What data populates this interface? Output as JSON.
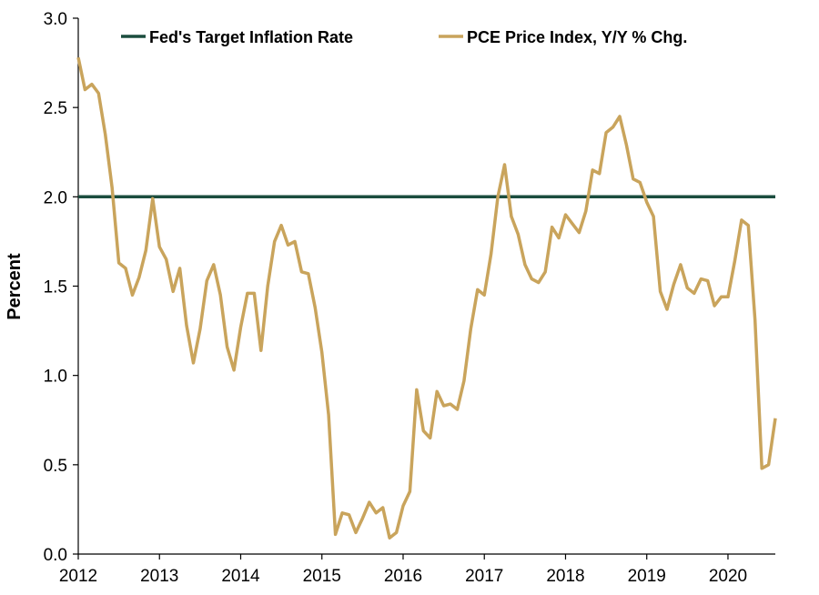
{
  "chart_data": {
    "type": "line",
    "title": "",
    "xlabel": "",
    "ylabel": "Percent",
    "ylim": [
      0,
      3.0
    ],
    "xlim": [
      2012.0,
      2020.583
    ],
    "y_ticks": [
      "0.0",
      "0.5",
      "1.0",
      "1.5",
      "2.0",
      "2.5",
      "3.0"
    ],
    "x_ticks": [
      "2012",
      "2013",
      "2014",
      "2015",
      "2016",
      "2017",
      "2018",
      "2019",
      "2020"
    ],
    "grid": false,
    "legend_position": "top",
    "series": [
      {
        "name": "Fed's Target Inflation Rate",
        "color": "#1b4d3e",
        "x": [
          2012.0,
          2020.583
        ],
        "values": [
          2.0,
          2.0
        ]
      },
      {
        "name": "PCE Price Index, Y/Y % Chg.",
        "color": "#c9a45c",
        "x": [
          2012.0,
          2012.083,
          2012.167,
          2012.25,
          2012.333,
          2012.417,
          2012.5,
          2012.583,
          2012.667,
          2012.75,
          2012.833,
          2012.917,
          2013.0,
          2013.083,
          2013.167,
          2013.25,
          2013.333,
          2013.417,
          2013.5,
          2013.583,
          2013.667,
          2013.75,
          2013.833,
          2013.917,
          2014.0,
          2014.083,
          2014.167,
          2014.25,
          2014.333,
          2014.417,
          2014.5,
          2014.583,
          2014.667,
          2014.75,
          2014.833,
          2014.917,
          2015.0,
          2015.083,
          2015.167,
          2015.25,
          2015.333,
          2015.417,
          2015.5,
          2015.583,
          2015.667,
          2015.75,
          2015.833,
          2015.917,
          2016.0,
          2016.083,
          2016.167,
          2016.25,
          2016.333,
          2016.417,
          2016.5,
          2016.583,
          2016.667,
          2016.75,
          2016.833,
          2016.917,
          2017.0,
          2017.083,
          2017.167,
          2017.25,
          2017.333,
          2017.417,
          2017.5,
          2017.583,
          2017.667,
          2017.75,
          2017.833,
          2017.917,
          2018.0,
          2018.083,
          2018.167,
          2018.25,
          2018.333,
          2018.417,
          2018.5,
          2018.583,
          2018.667,
          2018.75,
          2018.833,
          2018.917,
          2019.0,
          2019.083,
          2019.167,
          2019.25,
          2019.333,
          2019.417,
          2019.5,
          2019.583,
          2019.667,
          2019.75,
          2019.833,
          2019.917,
          2020.0,
          2020.083,
          2020.167,
          2020.25,
          2020.333,
          2020.417,
          2020.5,
          2020.583
        ],
        "values": [
          2.78,
          2.6,
          2.63,
          2.58,
          2.35,
          2.05,
          1.63,
          1.6,
          1.45,
          1.55,
          1.7,
          1.99,
          1.72,
          1.65,
          1.47,
          1.6,
          1.28,
          1.07,
          1.26,
          1.53,
          1.62,
          1.45,
          1.16,
          1.03,
          1.27,
          1.46,
          1.46,
          1.14,
          1.5,
          1.75,
          1.84,
          1.73,
          1.75,
          1.58,
          1.57,
          1.38,
          1.13,
          0.78,
          0.11,
          0.23,
          0.22,
          0.12,
          0.2,
          0.29,
          0.23,
          0.26,
          0.09,
          0.12,
          0.27,
          0.35,
          0.92,
          0.69,
          0.65,
          0.91,
          0.83,
          0.84,
          0.81,
          0.97,
          1.26,
          1.48,
          1.45,
          1.68,
          2.0,
          2.18,
          1.89,
          1.79,
          1.62,
          1.54,
          1.52,
          1.58,
          1.83,
          1.77,
          1.9,
          1.85,
          1.8,
          1.92,
          2.15,
          2.13,
          2.36,
          2.39,
          2.45,
          2.29,
          2.1,
          2.08,
          1.97,
          1.89,
          1.47,
          1.37,
          1.51,
          1.62,
          1.49,
          1.46,
          1.54,
          1.53,
          1.39,
          1.44,
          1.44,
          1.64,
          1.87,
          1.84,
          1.31,
          0.48,
          0.5,
          0.76
        ]
      }
    ]
  }
}
